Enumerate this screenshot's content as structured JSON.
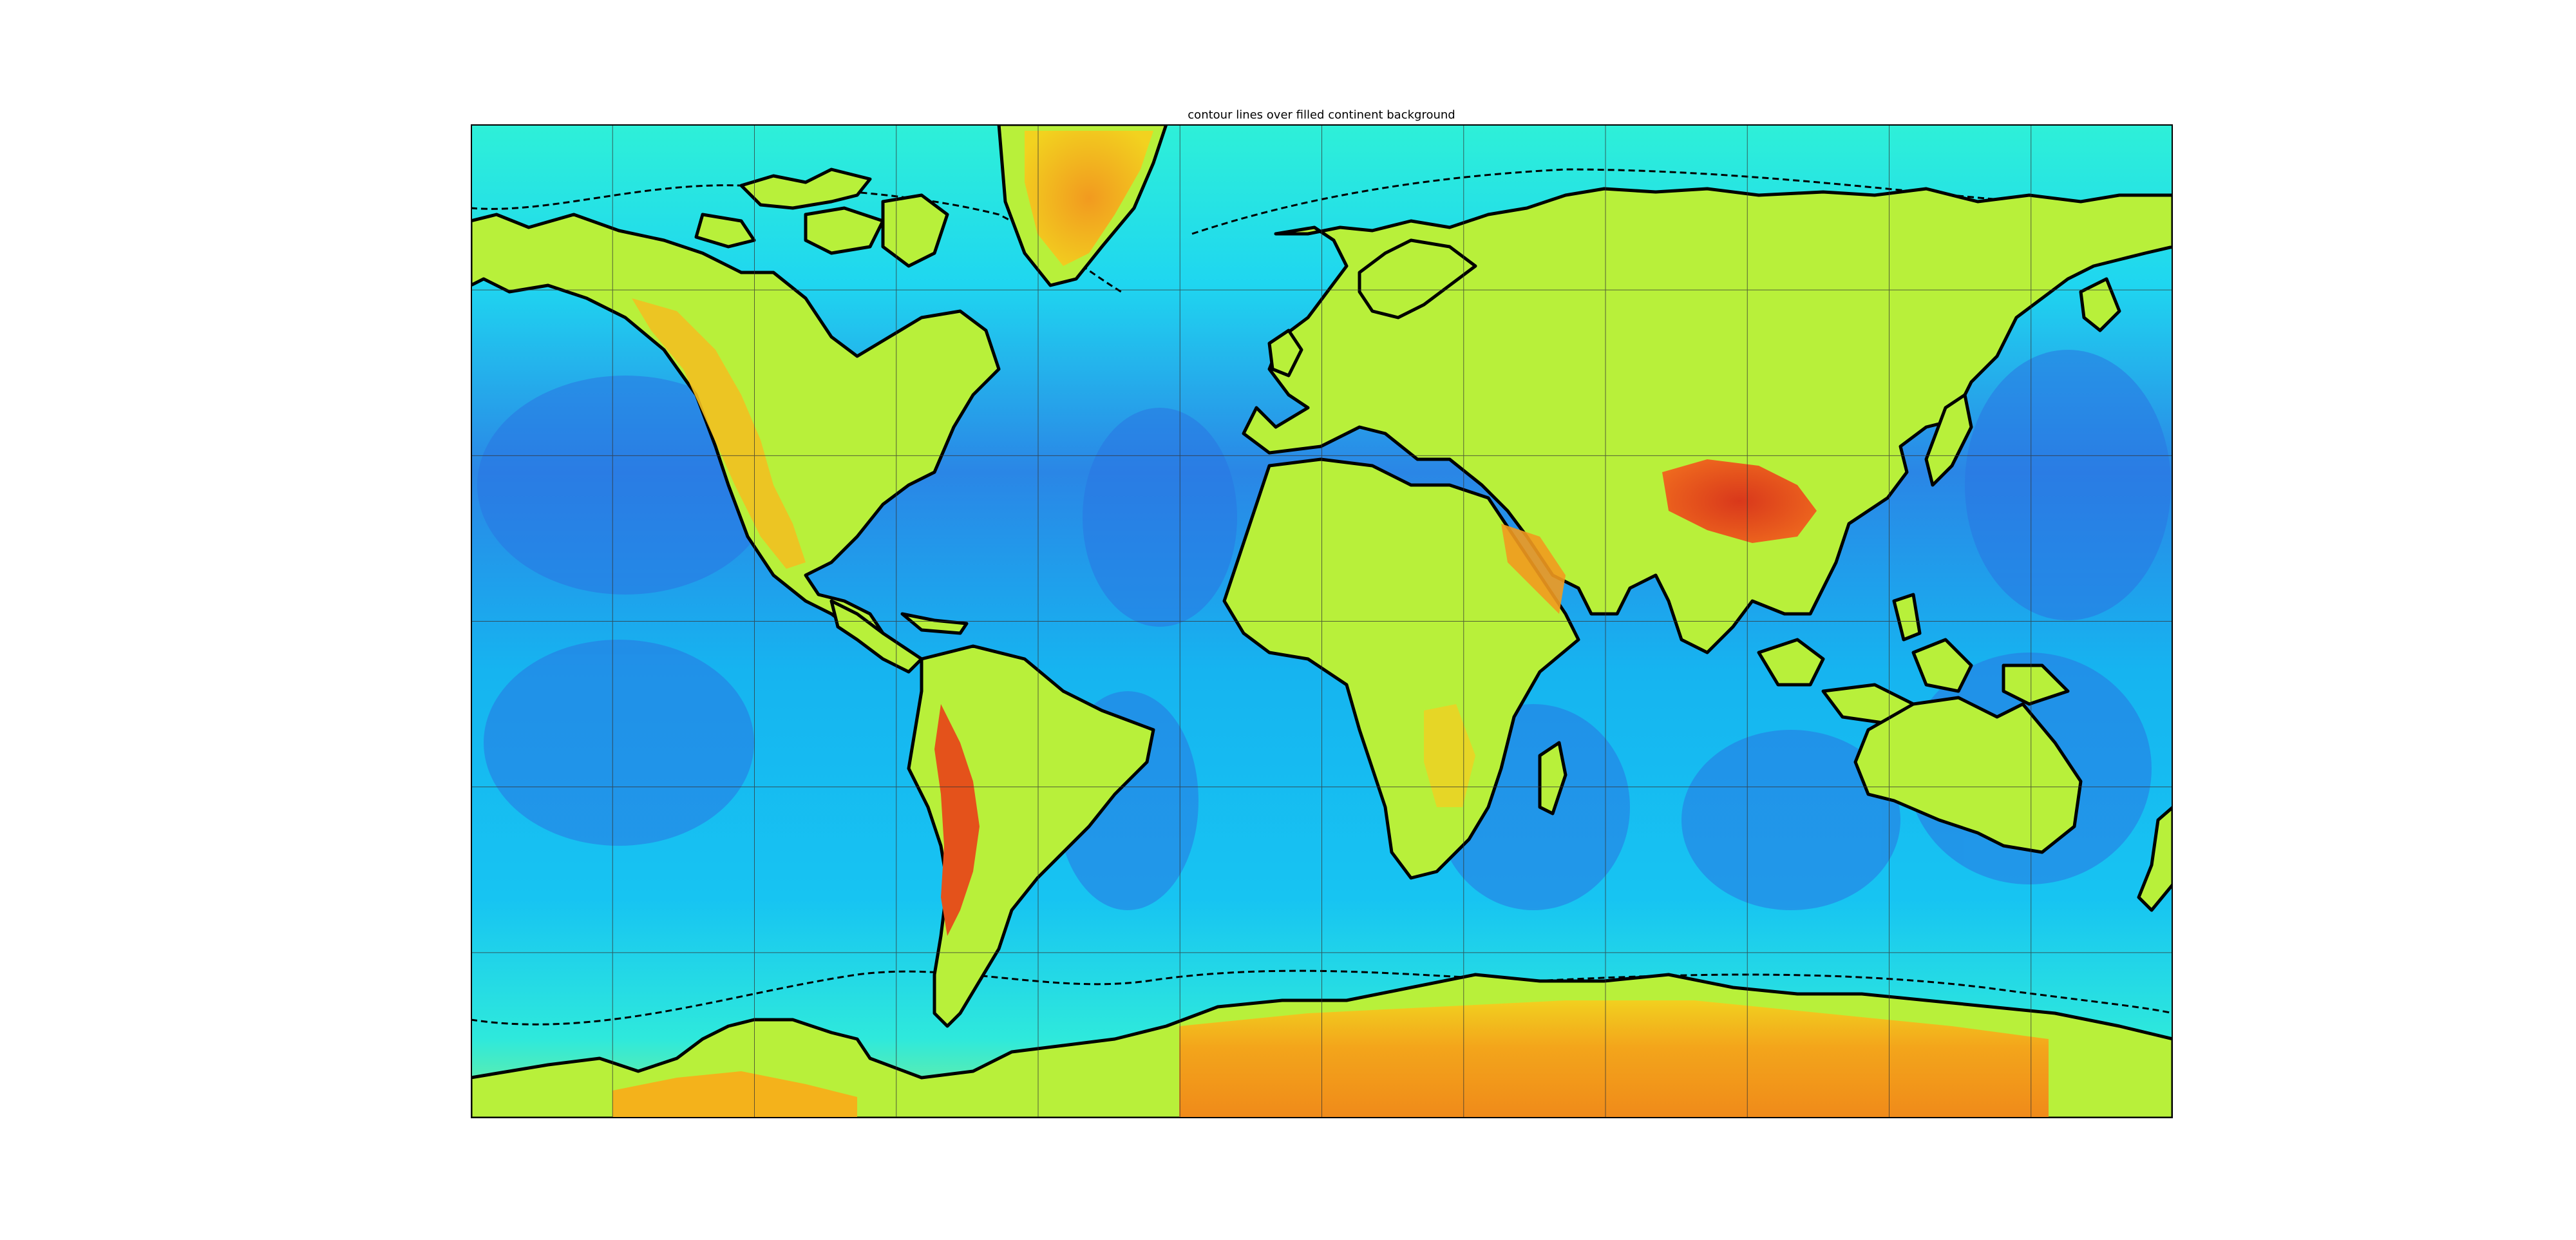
{
  "title": "contour lines over filled continent background",
  "map": {
    "projection": "equirectangular",
    "longitude_range": [
      -180,
      180
    ],
    "latitude_range": [
      -90,
      90
    ],
    "meridians_every_deg": 30,
    "parallels_every_deg": 30,
    "colormap": "jet",
    "layers": [
      "topography/bathymetry color fill",
      "coastline contour (solid)",
      "shelf contour (dashed)",
      "country borders",
      "lat/lon grid"
    ]
  },
  "colors": {
    "deep_ocean": "#2b6fe0",
    "mid_ocean": "#15b8f2",
    "shallow": "#2ef0d8",
    "lowland": "#b7f236",
    "highland": "#f3a21c",
    "peaks": "#e34a1b",
    "contour": "#000000",
    "grid": "#333333"
  }
}
